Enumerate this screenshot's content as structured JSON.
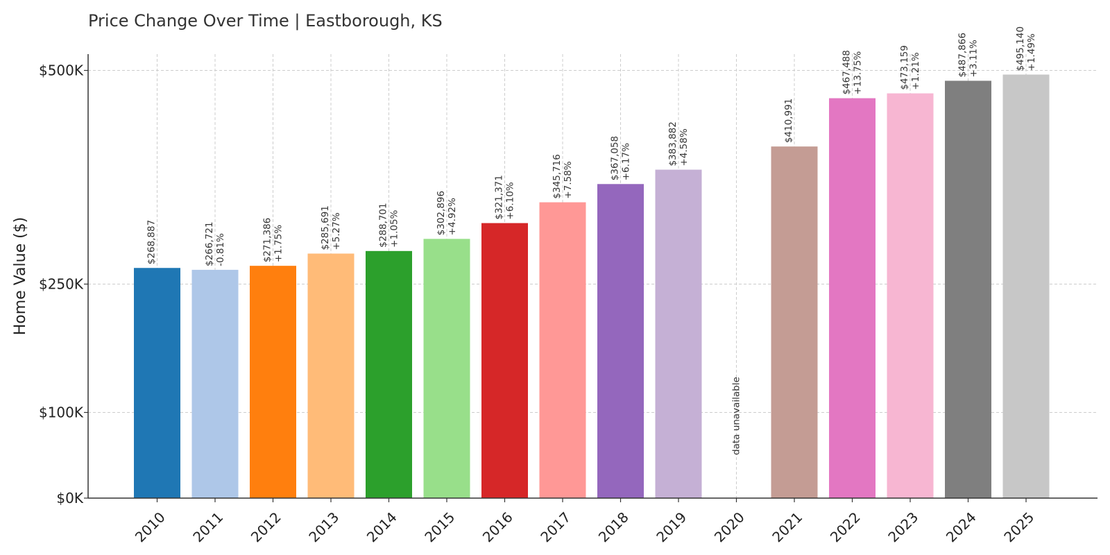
{
  "chart_data": {
    "type": "bar",
    "title": "Price Change Over Time | Eastborough, KS",
    "xlabel": "",
    "ylabel": "Home Value ($)",
    "y_scale": "nonlinear (ticks at $0K, $100K, $250K, $500K)",
    "y_ticks": [
      {
        "value": 0,
        "label": "$0K"
      },
      {
        "value": 100000,
        "label": "$100K"
      },
      {
        "value": 250000,
        "label": "$250K"
      },
      {
        "value": 500000,
        "label": "$500K"
      }
    ],
    "grid": true,
    "categories": [
      "2010",
      "2011",
      "2012",
      "2013",
      "2014",
      "2015",
      "2016",
      "2017",
      "2018",
      "2019",
      "2020",
      "2021",
      "2022",
      "2023",
      "2024",
      "2025"
    ],
    "values": [
      268887,
      266721,
      271386,
      285691,
      288701,
      302896,
      321371,
      345716,
      367058,
      383882,
      null,
      410991,
      467488,
      473159,
      487866,
      495140
    ],
    "value_labels": [
      "$268,887",
      "$266,721",
      "$271,386",
      "$285,691",
      "$288,701",
      "$302,896",
      "$321,371",
      "$345,716",
      "$367,058",
      "$383,882",
      "",
      "$410,991",
      "$467,488",
      "$473,159",
      "$487,866",
      "$495,140"
    ],
    "change_labels": [
      "",
      "-0.81%",
      "+1.75%",
      "+5.27%",
      "+1.05%",
      "+4.92%",
      "+6.10%",
      "+7.58%",
      "+6.17%",
      "+4.58%",
      "",
      "",
      "+13.75%",
      "+1.21%",
      "+3.11%",
      "+1.49%"
    ],
    "missing_label": "data unavailable",
    "colors": [
      "#1f77b4",
      "#aec7e8",
      "#ff7f0e",
      "#ffbb78",
      "#2ca02c",
      "#98df8a",
      "#d62728",
      "#ff9896",
      "#9467bd",
      "#c5b0d5",
      "#8c564b",
      "#c49c94",
      "#e377c2",
      "#f7b6d2",
      "#7f7f7f",
      "#c7c7c7"
    ]
  }
}
